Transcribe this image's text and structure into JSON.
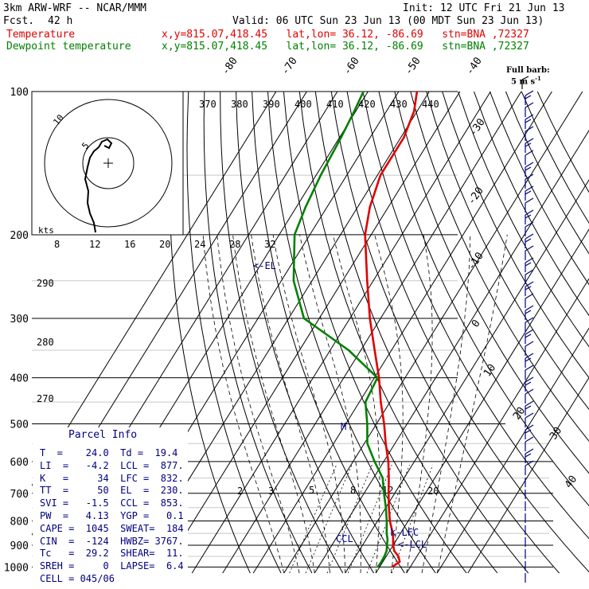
{
  "header": {
    "model": "3km ARW-WRF -- NCAR/MMM",
    "init": "Init: 12 UTC Fri 21 Jun 13",
    "fcst_label": "Fcst.",
    "fcst_value": "42 h",
    "valid": "Valid: 06 UTC Sun 23 Jun 13 (00 MDT Sun 23 Jun 13)"
  },
  "legend": {
    "temperature": {
      "label": "Temperature",
      "loc": "x,y=815.07,418.45   lat,lon= 36.12, -86.69   stn=BNA ,72327",
      "color": "#e00000"
    },
    "dewpoint": {
      "label": "Dewpoint temperature",
      "loc": "x,y=815.07,418.45   lat,lon= 36.12, -86.69   stn=BNA ,72327",
      "color": "#008000"
    }
  },
  "barb_legend": {
    "line1": "Full barb:",
    "line2": "5 m s",
    "sup": "-1"
  },
  "hodograph": {
    "units": "kts",
    "ring_labels": [
      "5",
      "10"
    ]
  },
  "parcel_info": {
    "title": "Parcel Info",
    "rows": [
      "T  =    24.0  Td =  19.4",
      "LI  =   -4.2  LCL =  877.",
      "K   =     34  LFC =  832.",
      "TT  =     50  EL  =  230.",
      "SVI =   -1.5  CCL =  853.",
      "PW  =   4.13  YGP =   0.1",
      "CAPE =  1045  SWEAT=  184",
      "CIN  =  -124  HWBZ= 3767.",
      "Tc   =  29.2  SHEAR=  11.",
      "SREH =     0  LAPSE=  6.4",
      "CELL = 045/06"
    ]
  },
  "chart_data": {
    "type": "line",
    "title": "",
    "xlabel": "",
    "ylabel": "",
    "pressure_levels": [
      "100",
      "200",
      "300",
      "400",
      "500",
      "600",
      "700",
      "800",
      "900",
      "1000"
    ],
    "isotherm_labels": [
      "-80",
      "-70",
      "-60",
      "-50",
      "-40",
      "-30",
      "-20",
      "-10",
      "0",
      "10",
      "20",
      "30",
      "40"
    ],
    "theta_e_labels": [
      "370",
      "380",
      "390",
      "400",
      "410",
      "420",
      "430",
      "440"
    ],
    "dry_adiabat_labels": [
      "290",
      "280",
      "270"
    ],
    "mixing_ratio_labels": [
      "8",
      "12",
      "16",
      "20",
      "24",
      "28",
      "32"
    ],
    "low_mixing_ratio_labels": [
      "2",
      "3",
      "5",
      "8",
      "12",
      "20"
    ],
    "annotations": {
      "el": "<-EL",
      "lfc": "k-LFC",
      "lcl": "<-LCL",
      "ccl": "CCL",
      "m": "M"
    },
    "series": [
      {
        "name": "Temperature",
        "color": "#e00000",
        "pressure": [
          1000,
          975,
          950,
          925,
          900,
          875,
          850,
          800,
          750,
          700,
          650,
          600,
          550,
          500,
          450,
          400,
          350,
          300,
          250,
          200,
          175,
          150,
          125,
          110,
          100
        ],
        "temperature": [
          24,
          25.5,
          24,
          21.5,
          20,
          18.8,
          17.5,
          14,
          11,
          8,
          5,
          1.5,
          -3,
          -7.5,
          -13,
          -18.5,
          -25.5,
          -33.5,
          -42,
          -52,
          -56,
          -59,
          -59,
          -61,
          -64
        ]
      },
      {
        "name": "Dewpoint temperature",
        "color": "#008000",
        "pressure": [
          1000,
          975,
          950,
          925,
          900,
          875,
          850,
          800,
          750,
          700,
          650,
          600,
          550,
          500,
          450,
          400,
          350,
          300,
          250,
          200,
          175,
          150,
          125,
          110,
          100
        ],
        "temperature": [
          19.4,
          19.5,
          19.4,
          19,
          18,
          17,
          15.5,
          13,
          10,
          6.5,
          3,
          -3,
          -9,
          -13,
          -18,
          -19,
          -34,
          -55,
          -66,
          -75,
          -77,
          -78.5,
          -79.5,
          -80.5,
          -81.5
        ]
      }
    ],
    "hodograph_trace": [
      [
        0,
        -10
      ],
      [
        1,
        -8
      ],
      [
        1.5,
        -6
      ],
      [
        1,
        -4
      ],
      [
        2,
        -2
      ],
      [
        3,
        0
      ],
      [
        4,
        2
      ],
      [
        5,
        3
      ],
      [
        7,
        3.5
      ],
      [
        8,
        2.5
      ],
      [
        7.5,
        1.5
      ],
      [
        6.5,
        2
      ]
    ]
  }
}
